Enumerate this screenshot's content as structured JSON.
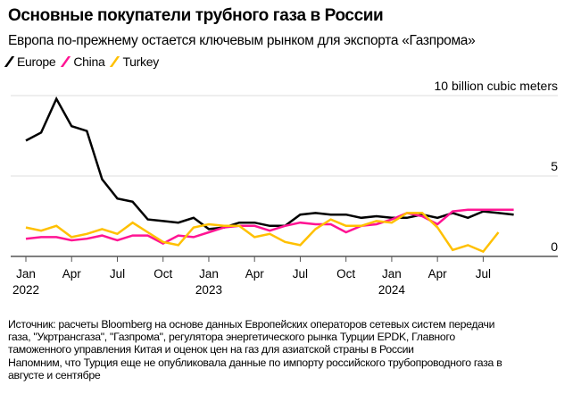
{
  "title": "Основные покупатели трубного газа в России",
  "subtitle": "Европа по-прежнему остается ключевым рынком для экспорта «Газпрома»",
  "source": [
    "Источник: расчеты Bloomberg на основе данных Европейских операторов сетевых систем передачи",
    "газа, \"Укртрансгаза\", \"Газпрома\", регулятора энергетического рынка Турции EPDK, Главного",
    "таможенного управления Китая и оценок цен на газ для азиатской страны в России",
    "Напомним, что Турция еще не опубликовала данные по импорту российского трубопроводного газа в",
    "августе и сентябре"
  ],
  "chart_data": {
    "type": "line",
    "ylabel": "10 billion cubic meters",
    "ylim": [
      0,
      10
    ],
    "yticks": [
      {
        "value": 10,
        "label": "10 billion cubic meters"
      },
      {
        "value": 5,
        "label": "5"
      },
      {
        "value": 0,
        "label": "0"
      }
    ],
    "grid": true,
    "legend": "top-left",
    "x_start": "2022-01",
    "xticks": [
      {
        "month": 0,
        "label": "Jan",
        "year": "2022"
      },
      {
        "month": 3,
        "label": "Apr"
      },
      {
        "month": 6,
        "label": "Jul"
      },
      {
        "month": 9,
        "label": "Oct"
      },
      {
        "month": 12,
        "label": "Jan",
        "year": "2023"
      },
      {
        "month": 15,
        "label": "Apr"
      },
      {
        "month": 18,
        "label": "Jul"
      },
      {
        "month": 21,
        "label": "Oct"
      },
      {
        "month": 24,
        "label": "Jan",
        "year": "2024"
      },
      {
        "month": 27,
        "label": "Apr"
      },
      {
        "month": 30,
        "label": "Jul"
      }
    ],
    "series": [
      {
        "name": "Europe",
        "color": "#000000",
        "values": [
          7.2,
          7.7,
          9.8,
          8.1,
          7.8,
          4.8,
          3.6,
          3.4,
          2.3,
          2.2,
          2.1,
          2.4,
          1.7,
          1.8,
          2.1,
          2.1,
          1.9,
          1.9,
          2.6,
          2.7,
          2.6,
          2.6,
          2.4,
          2.5,
          2.4,
          2.4,
          2.6,
          2.4,
          2.7,
          2.4,
          2.8,
          2.7,
          2.6
        ]
      },
      {
        "name": "China",
        "color": "#ff1493",
        "values": [
          1.1,
          1.2,
          1.2,
          1.0,
          1.1,
          1.3,
          1.0,
          1.3,
          1.3,
          0.8,
          1.3,
          1.2,
          1.5,
          1.8,
          1.9,
          1.9,
          1.6,
          1.9,
          2.1,
          2.0,
          2.0,
          1.5,
          1.9,
          2.0,
          2.3,
          2.7,
          2.5,
          2.0,
          2.8,
          2.9,
          2.9,
          2.9,
          2.9
        ]
      },
      {
        "name": "Turkey",
        "color": "#ffc000",
        "values": [
          1.8,
          1.6,
          1.9,
          1.2,
          1.4,
          1.7,
          1.4,
          2.1,
          1.5,
          0.9,
          0.7,
          1.8,
          2.0,
          1.9,
          1.9,
          1.2,
          1.4,
          0.9,
          0.7,
          1.7,
          2.3,
          1.9,
          1.9,
          2.2,
          2.1,
          2.7,
          2.7,
          1.8,
          0.4,
          0.7,
          0.3,
          1.5
        ]
      }
    ]
  }
}
